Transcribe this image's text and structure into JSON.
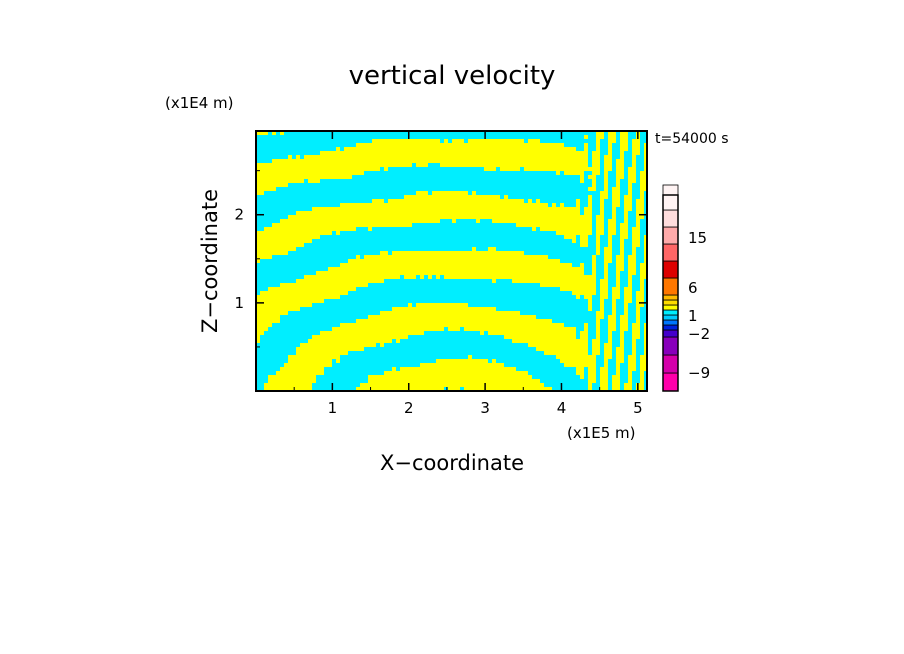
{
  "chart_data": {
    "type": "heatmap",
    "title": "vertical velocity",
    "xlabel": "X−coordinate",
    "ylabel": "Z−coordinate",
    "x_scale_label": "(x1E5 m)",
    "y_scale_label": "(x1E4 m)",
    "time_label": "t=54000 s",
    "xlim": [
      0,
      5.12
    ],
    "ylim": [
      0,
      2.95
    ],
    "x_ticks": [
      1,
      2,
      3,
      4,
      5
    ],
    "y_ticks": [
      1,
      2
    ],
    "colorbar": {
      "tick_labels": [
        "15",
        "6",
        "1",
        "−2",
        "−9"
      ],
      "levels": [
        {
          "color": "#ff00aa"
        },
        {
          "color": "#d400aa"
        },
        {
          "color": "#8800bb"
        },
        {
          "color": "#4400cc"
        },
        {
          "color": "#0022dd"
        },
        {
          "color": "#0077ff"
        },
        {
          "color": "#00ccff"
        },
        {
          "color": "#00eeff"
        },
        {
          "color": "#ffff00"
        },
        {
          "color": "#ffdd00"
        },
        {
          "color": "#ffbb00"
        },
        {
          "color": "#ff7700"
        },
        {
          "color": "#dd0000"
        },
        {
          "color": "#ff6666"
        },
        {
          "color": "#ffaaaa"
        },
        {
          "color": "#ffdddd"
        },
        {
          "color": "#fff4f4"
        }
      ]
    },
    "field_colors": {
      "positive": "#ffff00",
      "negative": "#00eeff"
    }
  }
}
